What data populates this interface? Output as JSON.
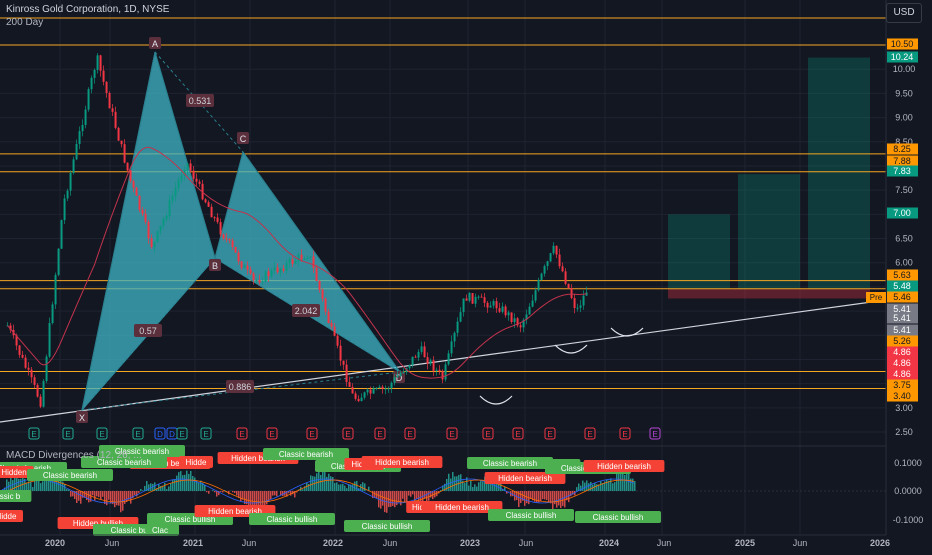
{
  "header": {
    "symbol_title": "Kinross Gold Corporation, 1D, NYSE",
    "ma_label": "200 Day",
    "currency": "USD"
  },
  "price_axis": {
    "ticks": [
      "10.00",
      "9.50",
      "9.00",
      "8.50",
      "8.00",
      "7.50",
      "7.00",
      "6.50",
      "6.00",
      "5.50",
      "5.00",
      "4.50",
      "4.00",
      "3.50",
      "3.00",
      "2.50"
    ]
  },
  "price_badges": [
    {
      "value": "10.50",
      "bg": "#ff9800",
      "fg": "#131722"
    },
    {
      "value": "10.24",
      "bg": "#089981",
      "fg": "#ffffff"
    },
    {
      "value": "8.25",
      "bg": "#ff9800",
      "fg": "#131722"
    },
    {
      "value": "7.88",
      "bg": "#ff9800",
      "fg": "#131722"
    },
    {
      "value": "7.83",
      "bg": "#089981",
      "fg": "#ffffff"
    },
    {
      "value": "7.00",
      "bg": "#089981",
      "fg": "#ffffff"
    },
    {
      "value": "5.63",
      "bg": "#ff9800",
      "fg": "#131722"
    },
    {
      "value": "5.48",
      "bg": "#089981",
      "fg": "#ffffff"
    },
    {
      "value": "5.46",
      "bg": "#ff9800",
      "fg": "#131722"
    },
    {
      "value": "5.41",
      "bg": "#787b86",
      "fg": "#ffffff"
    },
    {
      "value": "5.41",
      "bg": "#787b86",
      "fg": "#ffffff"
    },
    {
      "value": "5.41",
      "bg": "#787b86",
      "fg": "#ffffff"
    },
    {
      "value": "5.26",
      "bg": "#ff9800",
      "fg": "#131722"
    },
    {
      "value": "4.86",
      "bg": "#f23645",
      "fg": "#ffffff"
    },
    {
      "value": "4.86",
      "bg": "#f23645",
      "fg": "#ffffff"
    },
    {
      "value": "4.86",
      "bg": "#f23645",
      "fg": "#ffffff"
    },
    {
      "value": "3.75",
      "bg": "#ff9800",
      "fg": "#131722"
    },
    {
      "value": "3.40",
      "bg": "#ff9800",
      "fg": "#131722"
    }
  ],
  "pre_label": "Pre",
  "horizontal_levels": [
    "10.50",
    "8.25",
    "7.88",
    "5.63",
    "5.46",
    "3.75",
    "3.40"
  ],
  "harmonic": {
    "points": {
      "X": "X",
      "A": "A",
      "B": "B",
      "C": "C",
      "D": "D"
    },
    "ratios": {
      "xab": "0.531",
      "abc": "0.57",
      "bcd": "2.042",
      "xad": "0.886"
    }
  },
  "macd_title": "MACD Divergences (12, 26, ...",
  "macd_axis": {
    "ticks": [
      "0.1000",
      "0.0000",
      "-0.1000"
    ]
  },
  "macd_tags": {
    "classic_bearish": "Classic bearish",
    "hidden_bearish": "Hidden bearish",
    "classic_bullish": "Classic bullish",
    "hidden_bullish": "Hidden bullish",
    "hidden_bearish_cut": "Hidden",
    "hidden_bearish_short": "Hidde",
    "hidden_bearish_short2": "Hidd",
    "hidden_bullish_short": "Hid",
    "classic_short": "Clas",
    "classic_cut": "Clac",
    "classic_bullish_short": "Classic b",
    "hidden_bullish_cut": "Hidde"
  },
  "events": {
    "earnings": "E",
    "dividend": "D"
  },
  "time_axis": {
    "ticks": [
      "2020",
      "Jun",
      "2021",
      "Jun",
      "2022",
      "Jun",
      "2023",
      "Jun",
      "2024",
      "Jun",
      "2025",
      "Jun",
      "2026"
    ]
  },
  "colors": {
    "background": "#131722",
    "teal": "#089981",
    "red": "#f23645",
    "orange": "#ff9800",
    "pattern": "#3fb6c6"
  },
  "chart_data": {
    "type": "candlestick",
    "ylabel": "USD",
    "ylim": [
      2.5,
      10.5
    ],
    "approx_close_path": [
      {
        "x": "2019-12",
        "y": 4.7
      },
      {
        "x": "2020-03",
        "y": 3.1
      },
      {
        "x": "2020-05",
        "y": 7.2
      },
      {
        "x": "2020-08",
        "y": 10.24
      },
      {
        "x": "2020-11",
        "y": 7.7
      },
      {
        "x": "2021-01",
        "y": 6.3
      },
      {
        "x": "2021-04",
        "y": 8.1
      },
      {
        "x": "2021-07",
        "y": 6.7
      },
      {
        "x": "2021-10",
        "y": 5.6
      },
      {
        "x": "2022-03",
        "y": 6.2
      },
      {
        "x": "2022-05",
        "y": 4.6
      },
      {
        "x": "2022-07",
        "y": 3.2
      },
      {
        "x": "2022-10",
        "y": 3.4
      },
      {
        "x": "2023-01",
        "y": 4.2
      },
      {
        "x": "2023-03",
        "y": 3.6
      },
      {
        "x": "2023-05",
        "y": 5.3
      },
      {
        "x": "2023-08",
        "y": 5.1
      },
      {
        "x": "2023-10",
        "y": 4.7
      },
      {
        "x": "2023-12",
        "y": 5.8
      },
      {
        "x": "2024-01",
        "y": 6.3
      },
      {
        "x": "2024-03",
        "y": 5.0
      },
      {
        "x": "2024-04",
        "y": 5.48
      }
    ],
    "target_zones": [
      {
        "entry": 5.46,
        "stop": 5.26,
        "target": 7.0
      },
      {
        "entry": 5.46,
        "stop": 5.26,
        "target": 7.83
      },
      {
        "entry": 5.46,
        "stop": 5.26,
        "target": 10.24
      }
    ]
  }
}
